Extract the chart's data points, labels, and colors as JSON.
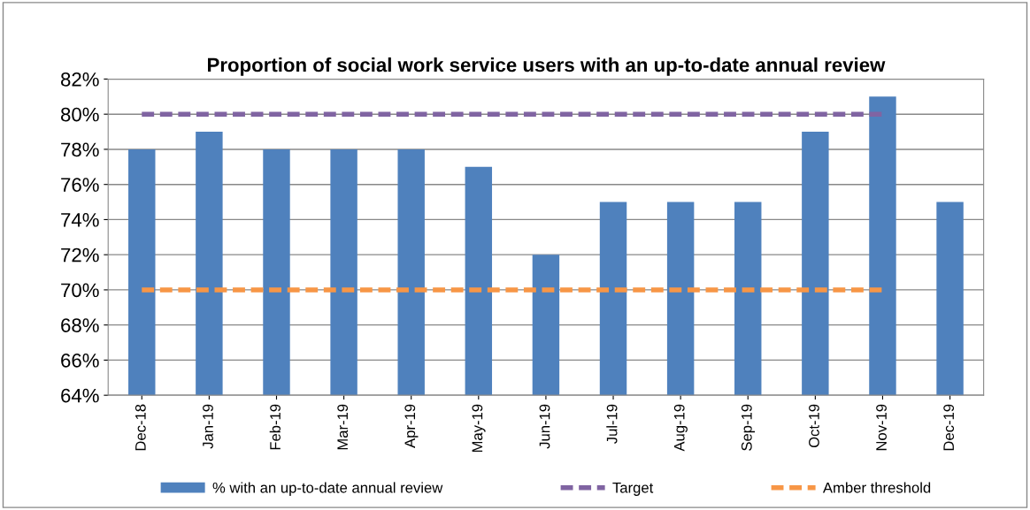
{
  "chart_data": {
    "type": "bar",
    "title": "Proportion of social work service users with an up-to-date annual review",
    "categories": [
      "Dec-18",
      "Jan-19",
      "Feb-19",
      "Mar-19",
      "Apr-19",
      "May-19",
      "Jun-19",
      "Jul-19",
      "Aug-19",
      "Sep-19",
      "Oct-19",
      "Nov-19",
      "Dec-19"
    ],
    "series": [
      {
        "name": "% with an up-to-date annual review",
        "color": "#4f81bd",
        "values": [
          78,
          79,
          78,
          78,
          78,
          77,
          72,
          75,
          75,
          75,
          79,
          81,
          75
        ]
      },
      {
        "name": "Target",
        "type": "line",
        "line_style": "dashed",
        "color": "#8064a2",
        "values": [
          80,
          80,
          80,
          80,
          80,
          80,
          80,
          80,
          80,
          80,
          80,
          80,
          null
        ]
      },
      {
        "name": "Amber threshold",
        "type": "line",
        "line_style": "dashed",
        "color": "#f79646",
        "values": [
          70,
          70,
          70,
          70,
          70,
          70,
          70,
          70,
          70,
          70,
          70,
          70,
          null
        ]
      }
    ],
    "ylim": [
      64,
      82
    ],
    "yticks": [
      {
        "value": 64,
        "label": "64%"
      },
      {
        "value": 66,
        "label": "66%"
      },
      {
        "value": 68,
        "label": "68%"
      },
      {
        "value": 70,
        "label": "70%"
      },
      {
        "value": 72,
        "label": "72%"
      },
      {
        "value": 74,
        "label": "74%"
      },
      {
        "value": 76,
        "label": "76%"
      },
      {
        "value": 78,
        "label": "78%"
      },
      {
        "value": 80,
        "label": "80%"
      },
      {
        "value": 82,
        "label": "82%"
      }
    ],
    "grid": "y",
    "legend": "bottom"
  }
}
